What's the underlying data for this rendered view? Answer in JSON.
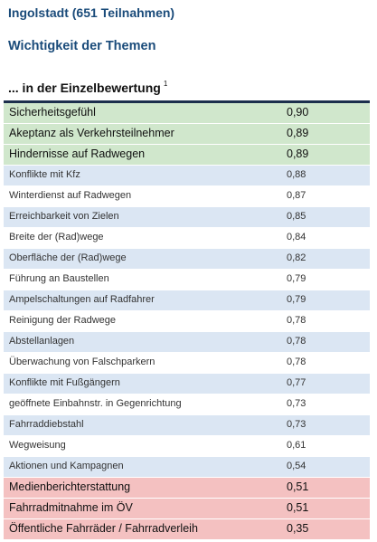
{
  "header": {
    "title": "Ingolstadt (651 Teilnahmen)",
    "subtitle": "Wichtigkeit der Themen",
    "section": "... in der Einzelbewertung",
    "footnote_marker": "1"
  },
  "colors": {
    "top_group": "#d0e7cc",
    "middle_even": "#dbe6f3",
    "middle_odd": "#ffffff",
    "bottom_group": "#f4c1c1",
    "header_text": "#1a4b7a",
    "rule": "#1c2f4d"
  },
  "rows": [
    {
      "label": "Sicherheitsgefühl",
      "value": "0,90",
      "group": "top"
    },
    {
      "label": "Akeptanz als Verkehrsteilnehmer",
      "value": "0,89",
      "group": "top"
    },
    {
      "label": "Hindernisse auf Radwegen",
      "value": "0,89",
      "group": "top"
    },
    {
      "label": "Konflikte mit Kfz",
      "value": "0,88",
      "group": "middle"
    },
    {
      "label": "Winterdienst auf Radwegen",
      "value": "0,87",
      "group": "middle"
    },
    {
      "label": "Erreichbarkeit von Zielen",
      "value": "0,85",
      "group": "middle"
    },
    {
      "label": "Breite der (Rad)wege",
      "value": "0,84",
      "group": "middle"
    },
    {
      "label": "Oberfläche der (Rad)wege",
      "value": "0,82",
      "group": "middle"
    },
    {
      "label": "Führung an Baustellen",
      "value": "0,79",
      "group": "middle"
    },
    {
      "label": "Ampelschaltungen auf Radfahrer",
      "value": "0,79",
      "group": "middle"
    },
    {
      "label": "Reinigung der Radwege",
      "value": "0,78",
      "group": "middle"
    },
    {
      "label": "Abstellanlagen",
      "value": "0,78",
      "group": "middle"
    },
    {
      "label": "Überwachung von Falschparkern",
      "value": "0,78",
      "group": "middle"
    },
    {
      "label": "Konflikte mit Fußgängern",
      "value": "0,77",
      "group": "middle"
    },
    {
      "label": "geöffnete Einbahnstr. in Gegenrichtung",
      "value": "0,73",
      "group": "middle"
    },
    {
      "label": "Fahrraddiebstahl",
      "value": "0,73",
      "group": "middle"
    },
    {
      "label": "Wegweisung",
      "value": "0,61",
      "group": "middle"
    },
    {
      "label": "Aktionen und Kampagnen",
      "value": "0,54",
      "group": "middle"
    },
    {
      "label": "Medienberichterstattung",
      "value": "0,51",
      "group": "bottom"
    },
    {
      "label": "Fahrradmitnahme im ÖV",
      "value": "0,51",
      "group": "bottom"
    },
    {
      "label": "Öffentliche Fahrräder / Fahrradverleih",
      "value": "0,35",
      "group": "bottom"
    }
  ]
}
